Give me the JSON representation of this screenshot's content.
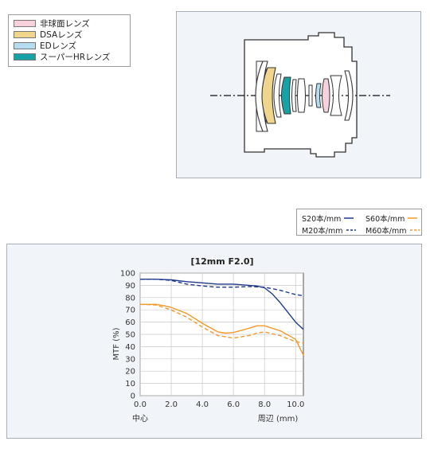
{
  "legend": {
    "items": [
      {
        "label": "非球面レンズ",
        "color": "#f7d2dd"
      },
      {
        "label": "DSAレンズ",
        "color": "#f0d68c"
      },
      {
        "label": "EDレンズ",
        "color": "#b6dcef"
      },
      {
        "label": "スーパーHRレンズ",
        "color": "#17a3a6"
      }
    ]
  },
  "mtf_key": {
    "s20": "S20本/mm",
    "s60": "S60本/mm",
    "m20": "M20本/mm",
    "m60": "M60本/mm",
    "color_20": "#1f3b8c",
    "color_60": "#f29a2e"
  },
  "chart_data": {
    "type": "line",
    "title": "[12mm F2.0]",
    "ylabel": "MTF (%)",
    "xlabel_left": "中心",
    "xlabel_right": "周辺 (mm)",
    "xlim": [
      0,
      10.5
    ],
    "ylim": [
      0,
      100
    ],
    "x_ticks": [
      "0.0",
      "2.0",
      "4.0",
      "6.0",
      "8.0",
      "10.0"
    ],
    "y_ticks": [
      "0",
      "10",
      "20",
      "30",
      "40",
      "50",
      "60",
      "70",
      "80",
      "90",
      "100"
    ],
    "grid": true,
    "series": [
      {
        "name": "S20本/mm",
        "style": "solid",
        "color": "#1f3b8c",
        "x": [
          0,
          1,
          2,
          3,
          4,
          5,
          6,
          7,
          7.5,
          8,
          8.5,
          9,
          9.5,
          10,
          10.5
        ],
        "y": [
          95,
          95,
          94.5,
          93,
          92,
          91,
          91,
          90,
          89.5,
          88,
          83,
          76,
          68,
          60,
          54
        ]
      },
      {
        "name": "M20本/mm",
        "style": "dashed",
        "color": "#1f3b8c",
        "x": [
          0,
          1,
          2,
          3,
          4,
          5,
          6,
          7,
          8,
          9,
          10,
          10.5
        ],
        "y": [
          95,
          95,
          94,
          91,
          89.5,
          88.5,
          88.5,
          89,
          88.5,
          86,
          82.5,
          81.5
        ]
      },
      {
        "name": "S60本/mm",
        "style": "solid",
        "color": "#f29a2e",
        "x": [
          0,
          1,
          1.5,
          2,
          3,
          4,
          5,
          5.5,
          6,
          7,
          7.5,
          8,
          9,
          10,
          10.5
        ],
        "y": [
          74.5,
          74.5,
          73.5,
          72,
          67,
          59,
          52,
          51,
          51.5,
          55,
          57,
          57,
          53,
          46,
          33
        ]
      },
      {
        "name": "M60本/mm",
        "style": "dashed",
        "color": "#f29a2e",
        "x": [
          0,
          1,
          2,
          3,
          4,
          5,
          6,
          7,
          7.5,
          8,
          9,
          10,
          10.5
        ],
        "y": [
          74.5,
          74,
          70,
          64,
          56,
          49,
          47,
          49,
          51,
          52,
          49,
          44,
          43
        ]
      }
    ]
  }
}
